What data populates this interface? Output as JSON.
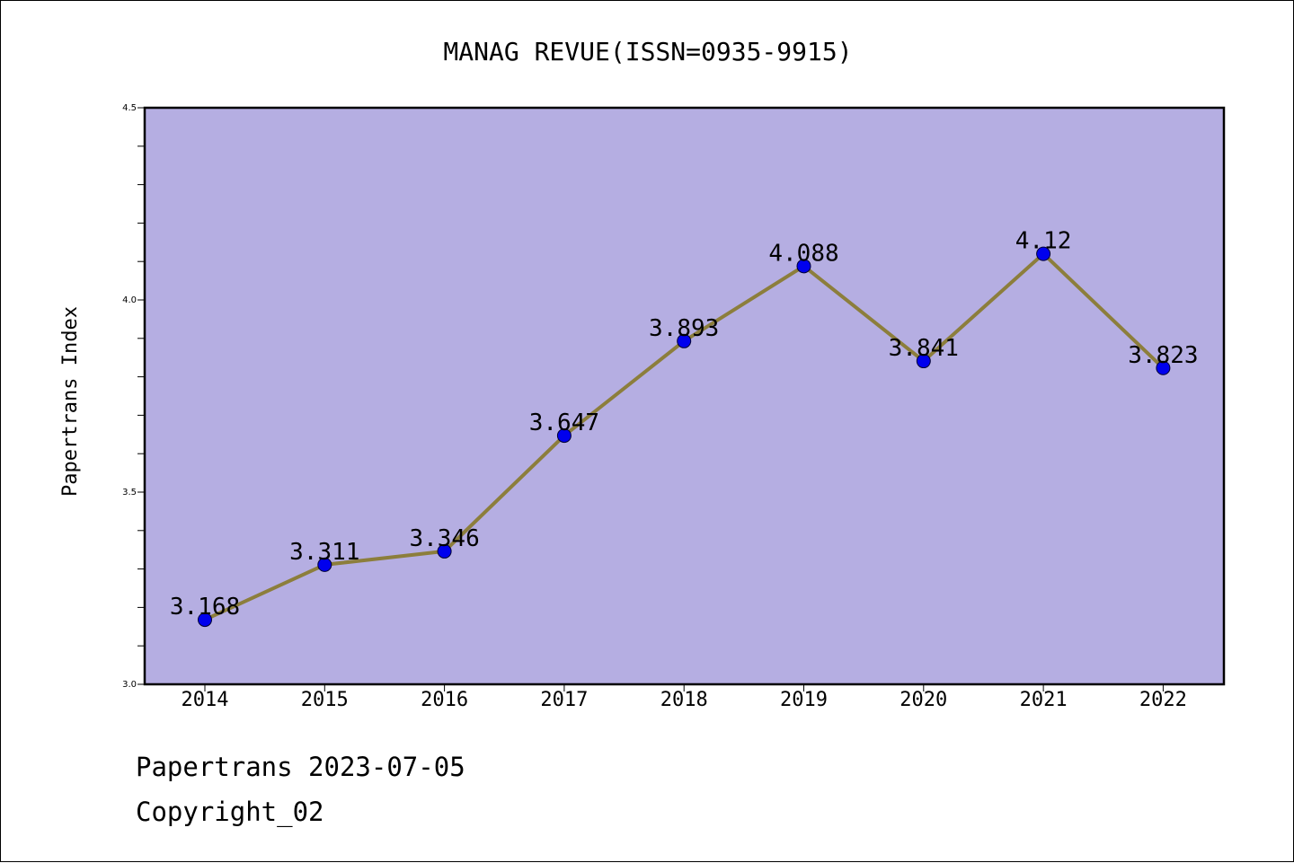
{
  "chart_data": {
    "type": "line",
    "title": "MANAG REVUE(ISSN=0935-9915)",
    "ylabel": "Papertrans Index",
    "xlabel": "",
    "categories": [
      "2014",
      "2015",
      "2016",
      "2017",
      "2018",
      "2019",
      "2020",
      "2021",
      "2022"
    ],
    "series": [
      {
        "values": [
          3.168,
          3.311,
          3.346,
          3.647,
          3.893,
          4.088,
          3.841,
          4.12,
          3.823
        ],
        "data_labels": [
          "3.168",
          "3.311",
          "3.346",
          "3.647",
          "3.893",
          "4.088",
          "3.841",
          "4.12",
          "3.823"
        ]
      }
    ],
    "ylim": [
      3.0,
      4.5
    ],
    "yticks": [
      "3.0",
      "3.5",
      "4.0",
      "4.5"
    ],
    "minor_tick_step": 0.1,
    "grid": false,
    "legend": "none",
    "colors": {
      "plot_background": "#b5aee2",
      "line": "#8c7e3c",
      "marker": "#0000ee"
    }
  },
  "footer": {
    "date_line": "Papertrans 2023-07-05",
    "copyright": "Copyright_02"
  }
}
